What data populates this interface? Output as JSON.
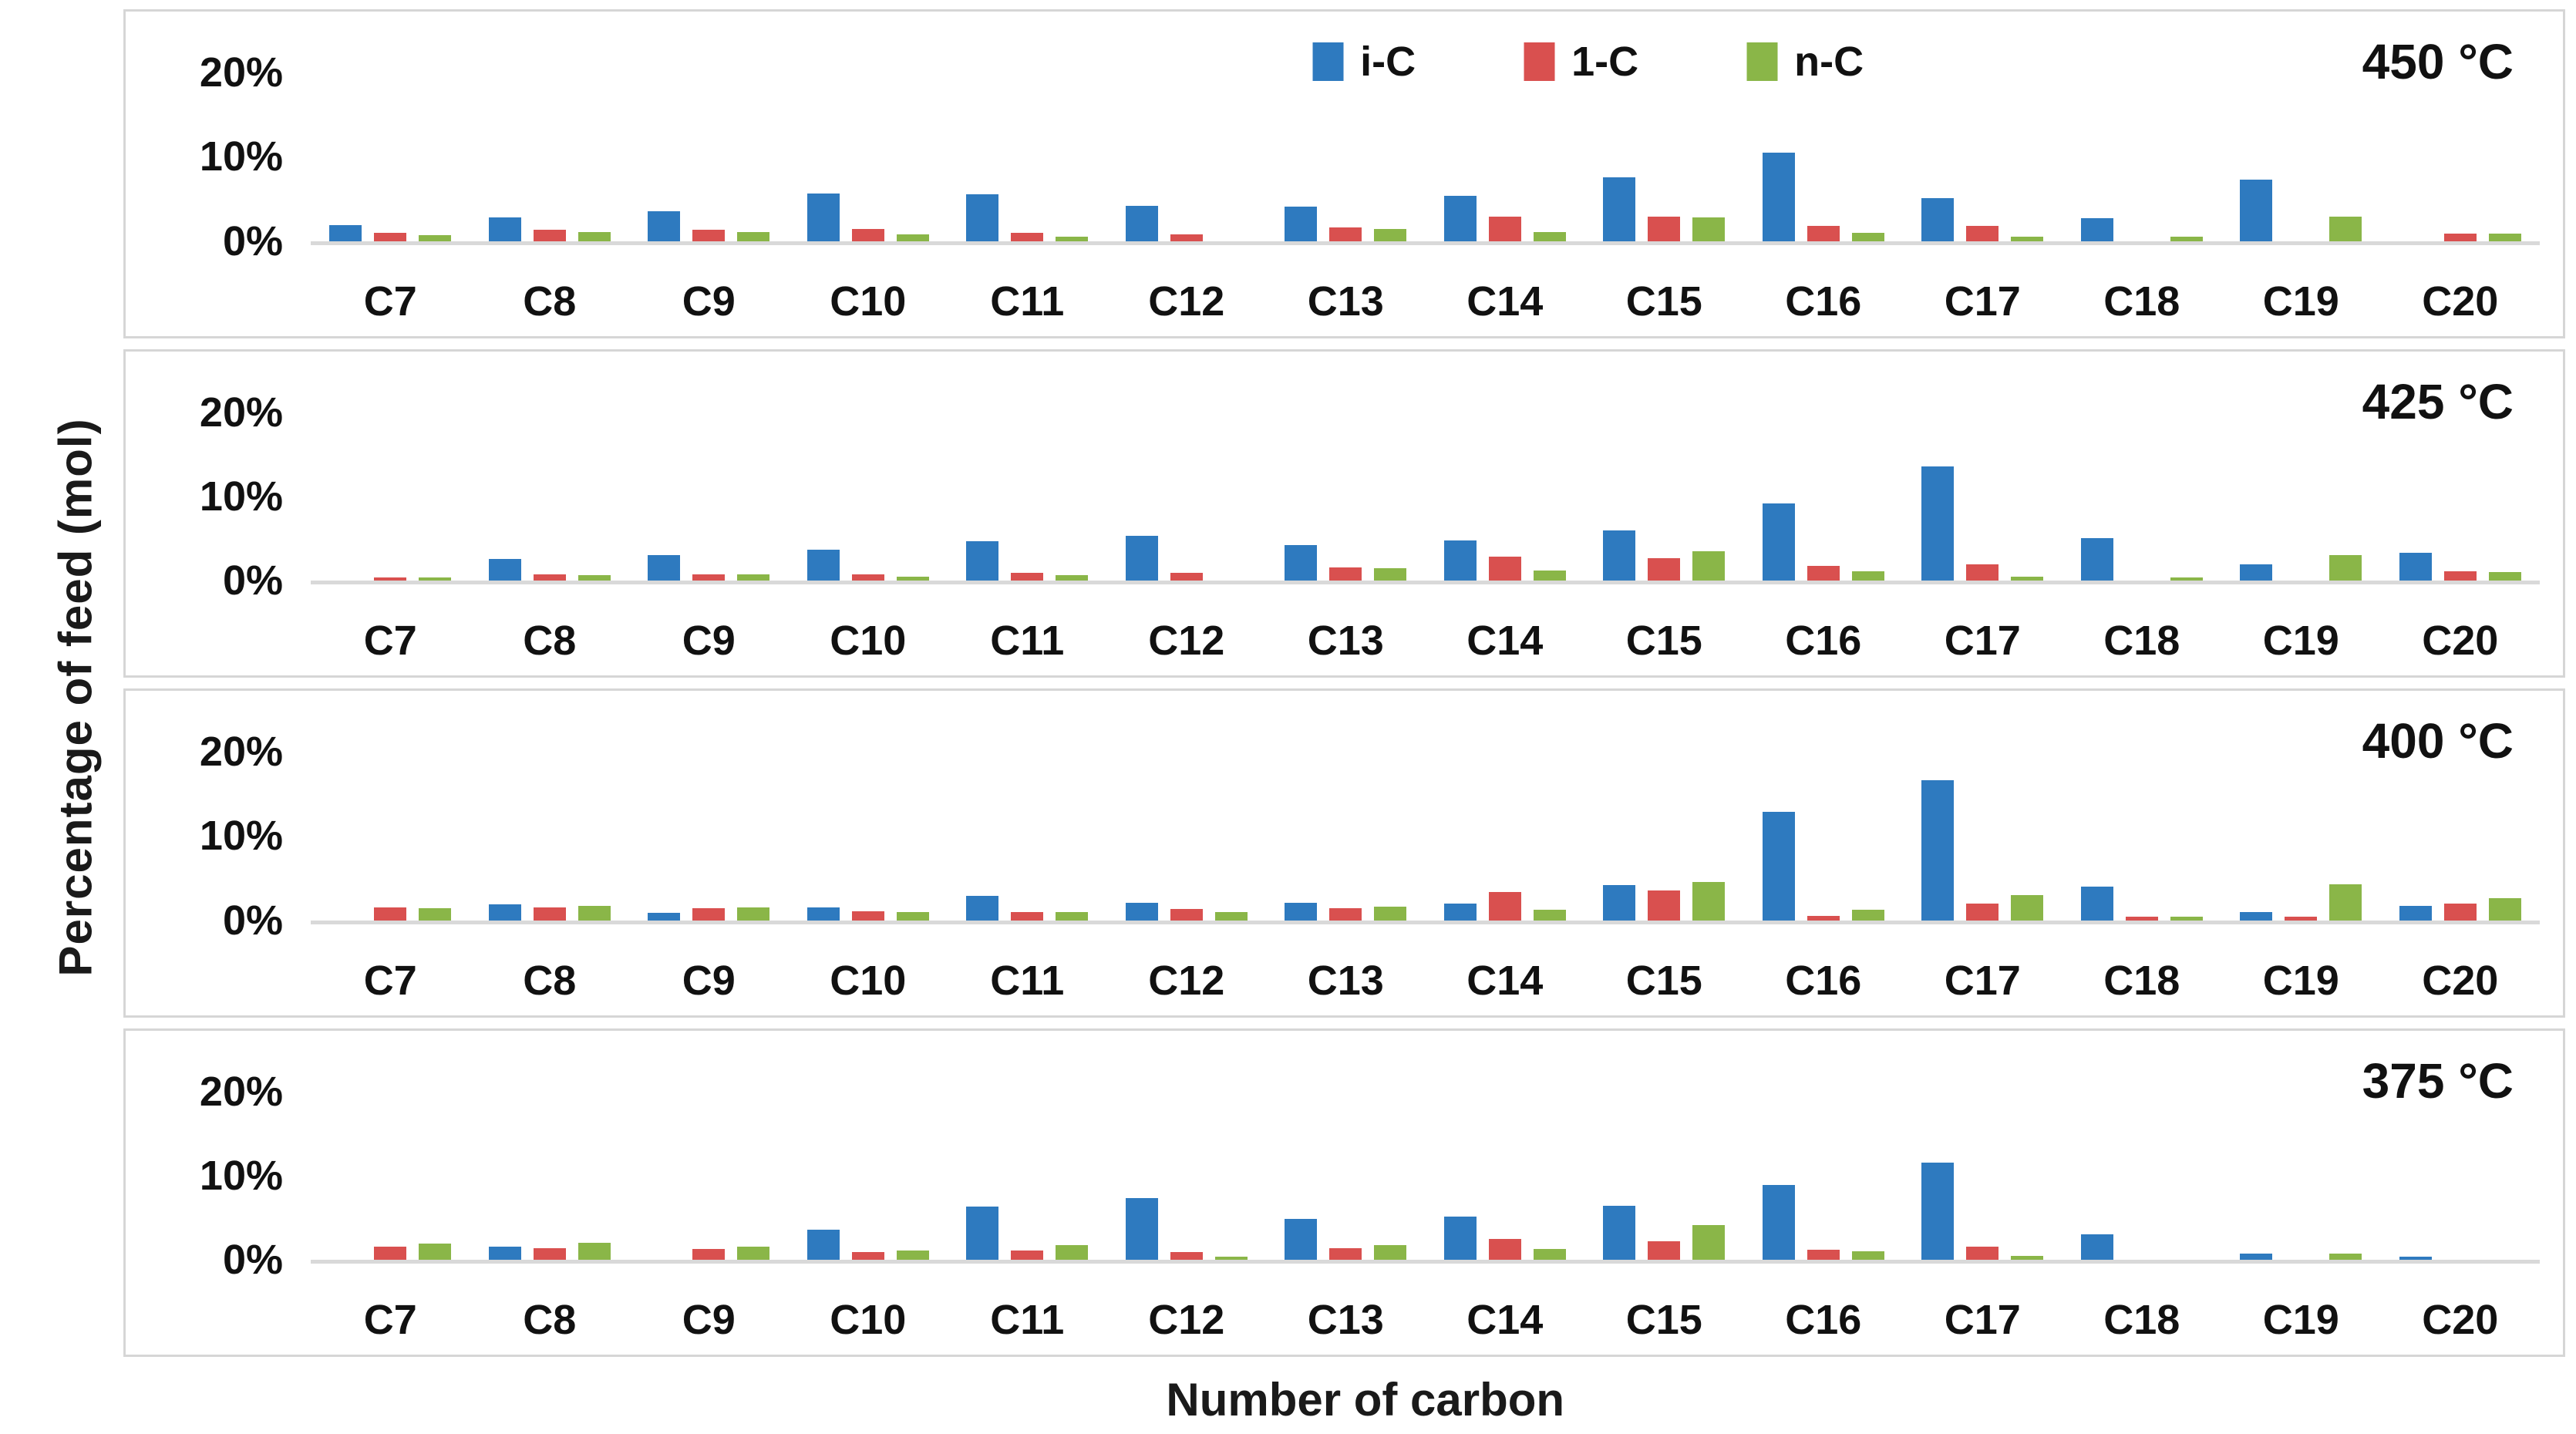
{
  "chart_data": {
    "type": "bar",
    "title": "",
    "xlabel": "Number of carbon",
    "ylabel": "Percentage of feed (mol)",
    "grid": false,
    "legend_position": "top-center of first panel",
    "categories": [
      "C7",
      "C8",
      "C9",
      "C10",
      "C11",
      "C12",
      "C13",
      "C14",
      "C15",
      "C16",
      "C17",
      "C18",
      "C19",
      "C20"
    ],
    "yticks": [
      {
        "label": "20%",
        "value": 20
      },
      {
        "label": "10%",
        "value": 10
      },
      {
        "label": "0%",
        "value": 0
      }
    ],
    "ymax": 25.6,
    "series": [
      {
        "name": "i-C",
        "color": "#2e7abf"
      },
      {
        "name": "1-C",
        "color": "#d9504f"
      },
      {
        "name": "n-C",
        "color": "#8ab648"
      }
    ],
    "panels": [
      {
        "title": "450 °C",
        "values": {
          "i-C": [
            1.9,
            2.8,
            3.5,
            5.6,
            5.5,
            4.2,
            4.1,
            5.4,
            7.6,
            10.5,
            5.1,
            2.7,
            7.3,
            0
          ],
          "1-C": [
            1.0,
            1.3,
            1.3,
            1.4,
            1.0,
            0.8,
            1.6,
            2.9,
            2.9,
            1.8,
            1.8,
            0,
            0,
            0.9
          ],
          "n-C": [
            0.7,
            1.1,
            1.1,
            0.8,
            0.5,
            0,
            1.4,
            1.1,
            2.8,
            1.0,
            0.5,
            0.5,
            2.9,
            0.9
          ]
        }
      },
      {
        "title": "425 °C",
        "values": {
          "i-C": [
            0,
            2.6,
            3.0,
            3.7,
            4.7,
            5.3,
            4.2,
            4.8,
            6.0,
            9.2,
            13.6,
            5.0,
            1.9,
            3.3
          ],
          "1-C": [
            0.4,
            0.7,
            0.7,
            0.7,
            0.9,
            0.9,
            1.6,
            2.8,
            2.7,
            1.7,
            1.9,
            0,
            0,
            1.1
          ],
          "n-C": [
            0.4,
            0.6,
            0.7,
            0.5,
            0.6,
            0,
            1.5,
            1.2,
            3.5,
            1.1,
            0.5,
            0.4,
            3.0,
            1.0
          ]
        }
      },
      {
        "title": "400 °C",
        "values": {
          "i-C": [
            0,
            1.9,
            0.9,
            1.5,
            2.9,
            2.1,
            2.1,
            2.0,
            4.2,
            12.9,
            16.6,
            4.0,
            1.0,
            1.7
          ],
          "1-C": [
            1.5,
            1.5,
            1.4,
            1.1,
            1.0,
            1.3,
            1.4,
            3.3,
            3.5,
            0.5,
            2.0,
            0.4,
            0.4,
            2.0
          ],
          "n-C": [
            1.4,
            1.7,
            1.5,
            1.0,
            1.0,
            1.0,
            1.6,
            1.2,
            4.5,
            1.2,
            3.0,
            0.4,
            4.3,
            2.6
          ]
        }
      },
      {
        "title": "375 °C",
        "values": {
          "i-C": [
            0,
            1.6,
            0,
            3.6,
            6.3,
            7.3,
            4.9,
            5.1,
            6.4,
            8.9,
            11.5,
            3.0,
            0.7,
            0.4
          ],
          "1-C": [
            1.6,
            1.4,
            1.3,
            0.9,
            1.1,
            0.9,
            1.4,
            2.5,
            2.2,
            1.2,
            1.6,
            0,
            0,
            0
          ],
          "n-C": [
            1.9,
            2.0,
            1.6,
            1.1,
            1.7,
            0.4,
            1.7,
            1.3,
            4.1,
            1.0,
            0.5,
            0,
            0.7,
            0
          ]
        }
      }
    ]
  }
}
